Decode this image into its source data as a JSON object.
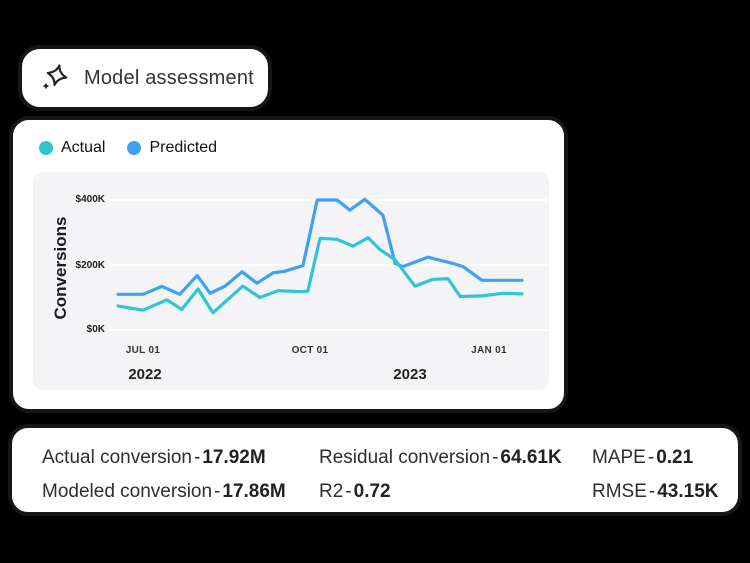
{
  "header": {
    "title": "Model assessment",
    "icon": "sparkle"
  },
  "chart": {
    "legend": [
      {
        "label": "Actual",
        "color": "#30C5D2"
      },
      {
        "label": "Predicted",
        "color": "#3DA1F5"
      }
    ]
  },
  "chart_data": {
    "type": "line",
    "ylabel": "Conversions",
    "value_unit": "USD thousands ($K)",
    "ylim_k": [
      0,
      440
    ],
    "grid": "horizontal, white on light-gray panel",
    "legend_position": "top-left",
    "y_ticks": [
      {
        "label": "$400K",
        "value": 400
      },
      {
        "label": "$200K",
        "value": 200
      },
      {
        "label": "$0K",
        "value": 0
      }
    ],
    "x_ticks": [
      {
        "label": "JUL 01",
        "pos": 0.062
      },
      {
        "label": "OCT 01",
        "pos": 0.475
      },
      {
        "label": "JAN 01",
        "pos": 0.918
      }
    ],
    "x_years": [
      {
        "label": "2022",
        "pos": 0.067
      },
      {
        "label": "2023",
        "pos": 0.723
      }
    ],
    "x_unit": "fraction of x-axis; weekly points spanning mid-Jun 2022 to late-Jan 2023",
    "series": [
      {
        "name": "Actual",
        "color": "#30C5D2",
        "points": [
          [
            0.0,
            74
          ],
          [
            0.062,
            61
          ],
          [
            0.121,
            93
          ],
          [
            0.158,
            63
          ],
          [
            0.198,
            126
          ],
          [
            0.235,
            53
          ],
          [
            0.309,
            135
          ],
          [
            0.351,
            100
          ],
          [
            0.396,
            121
          ],
          [
            0.458,
            118
          ],
          [
            0.47,
            120
          ],
          [
            0.5,
            282
          ],
          [
            0.542,
            279
          ],
          [
            0.582,
            258
          ],
          [
            0.619,
            284
          ],
          [
            0.649,
            247
          ],
          [
            0.686,
            216
          ],
          [
            0.735,
            135
          ],
          [
            0.78,
            156
          ],
          [
            0.817,
            158
          ],
          [
            0.847,
            103
          ],
          [
            0.901,
            105
          ],
          [
            0.953,
            113
          ],
          [
            1.0,
            111
          ]
        ]
      },
      {
        "name": "Predicted",
        "color": "#3DA1F5",
        "points": [
          [
            0.0,
            110
          ],
          [
            0.062,
            110
          ],
          [
            0.109,
            134
          ],
          [
            0.153,
            110
          ],
          [
            0.196,
            168
          ],
          [
            0.228,
            113
          ],
          [
            0.265,
            135
          ],
          [
            0.307,
            179
          ],
          [
            0.344,
            144
          ],
          [
            0.384,
            176
          ],
          [
            0.413,
            181
          ],
          [
            0.458,
            198
          ],
          [
            0.493,
            400
          ],
          [
            0.542,
            400
          ],
          [
            0.574,
            369
          ],
          [
            0.611,
            402
          ],
          [
            0.656,
            353
          ],
          [
            0.686,
            205
          ],
          [
            0.705,
            195
          ],
          [
            0.767,
            224
          ],
          [
            0.829,
            205
          ],
          [
            0.854,
            195
          ],
          [
            0.901,
            153
          ],
          [
            1.0,
            153
          ]
        ]
      }
    ]
  },
  "metrics": {
    "sep": "-",
    "columns": [
      [
        {
          "label": "Actual conversion",
          "value": "17.92M"
        },
        {
          "label": "Modeled conversion",
          "value": "17.86M"
        }
      ],
      [
        {
          "label": "Residual conversion",
          "value": "64.61K"
        },
        {
          "label": "R2",
          "value": "0.72"
        }
      ],
      [
        {
          "label": "MAPE",
          "value": "0.21"
        },
        {
          "label": "RMSE",
          "value": "43.15K"
        }
      ]
    ]
  }
}
